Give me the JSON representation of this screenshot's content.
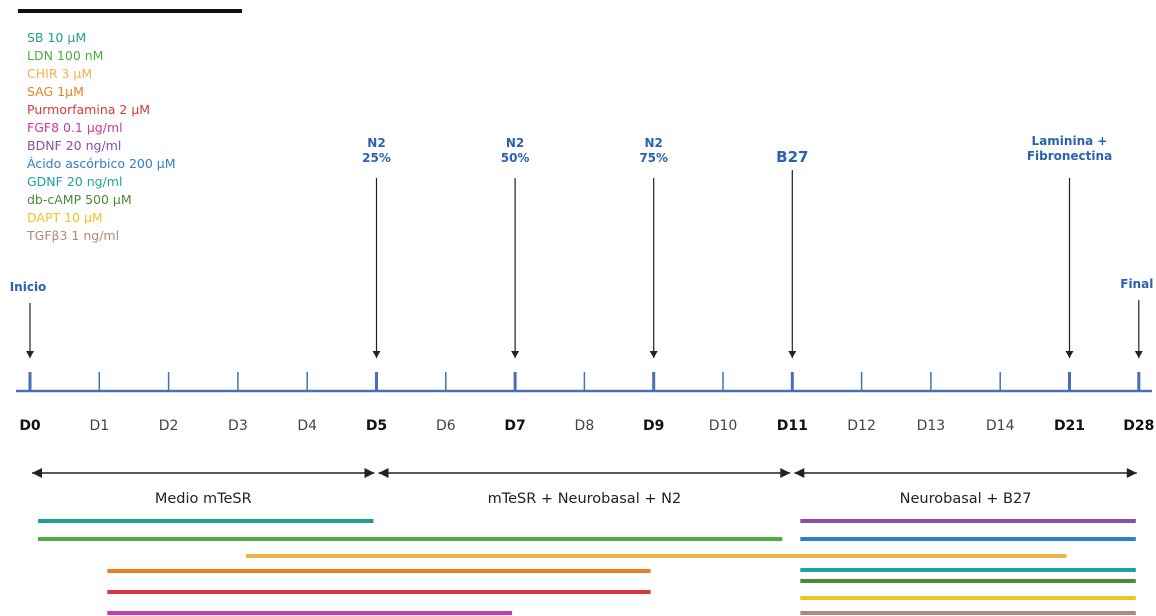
{
  "legend": [
    {
      "label": "SB 10 µM",
      "color": "#1f9e94"
    },
    {
      "label": "LDN 100 nM",
      "color": "#4caf3e"
    },
    {
      "label": "CHIR 3 µM",
      "color": "#f2b24a"
    },
    {
      "label": "SAG 1µM",
      "color": "#ea7f27"
    },
    {
      "label": "Purmorfamina 2 µM",
      "color": "#d9383a"
    },
    {
      "label": "FGF8 0.1 µg/ml",
      "color": "#c83aa9"
    },
    {
      "label": "BDNF 20 ng/ml",
      "color": "#8a4ea8"
    },
    {
      "label": "Ácido ascórbico 200 µM",
      "color": "#2e7fc9"
    },
    {
      "label": "GDNF 20 ng/ml",
      "color": "#19a3a3"
    },
    {
      "label": "db-cAMP 500 µM",
      "color": "#4b8a3a"
    },
    {
      "label": "DAPT 10 µM",
      "color": "#ebc626"
    },
    {
      "label": "TGFβ3 1 ng/ml",
      "color": "#b08a78"
    }
  ],
  "timeline": {
    "days": [
      {
        "label": "D0",
        "bold": true
      },
      {
        "label": "D1",
        "bold": false
      },
      {
        "label": "D2",
        "bold": false
      },
      {
        "label": "D3",
        "bold": false
      },
      {
        "label": "D4",
        "bold": false
      },
      {
        "label": "D5",
        "bold": true
      },
      {
        "label": "D6",
        "bold": false
      },
      {
        "label": "D7",
        "bold": true
      },
      {
        "label": "D8",
        "bold": false
      },
      {
        "label": "D9",
        "bold": true
      },
      {
        "label": "D10",
        "bold": false
      },
      {
        "label": "D11",
        "bold": true
      },
      {
        "label": "D12",
        "bold": false
      },
      {
        "label": "D13",
        "bold": false
      },
      {
        "label": "D14",
        "bold": false
      },
      {
        "label": "D21",
        "bold": true
      },
      {
        "label": "D28",
        "bold": true
      }
    ],
    "line_color": "#4a6fb5"
  },
  "annotations": [
    {
      "day": "D0",
      "lines": [
        "Inicio"
      ]
    },
    {
      "day": "D5",
      "lines": [
        "N2",
        "25%"
      ]
    },
    {
      "day": "D7",
      "lines": [
        "N2",
        "50%"
      ]
    },
    {
      "day": "D9",
      "lines": [
        "N2",
        "75%"
      ]
    },
    {
      "day": "D11",
      "lines": [
        "B27"
      ],
      "large": true
    },
    {
      "day": "D21",
      "lines": [
        "Laminina +",
        "Fibronectina"
      ]
    },
    {
      "day": "D28",
      "lines": [
        "Final"
      ]
    }
  ],
  "phases": [
    {
      "label": "Medio mTeSR",
      "from": "D0",
      "to": "D5"
    },
    {
      "label": "mTeSR + Neurobasal + N2",
      "from": "D5",
      "to": "D11"
    },
    {
      "label": "Neurobasal + B27",
      "from": "D11",
      "to": "D28"
    }
  ],
  "treatments": [
    {
      "name": "SB 10 µM",
      "from": "D0",
      "to": "D5"
    },
    {
      "name": "LDN 100 nM",
      "from": "D0",
      "to": "D11"
    },
    {
      "name": "CHIR 3 µM",
      "from": "D3",
      "to": "D21"
    },
    {
      "name": "SAG 1µM",
      "from": "D1",
      "to": "D9"
    },
    {
      "name": "Purmorfamina 2 µM",
      "from": "D1",
      "to": "D9"
    },
    {
      "name": "FGF8 0.1 µg/ml",
      "from": "D1",
      "to": "D7"
    },
    {
      "name": "BDNF 20 ng/ml",
      "from": "D11",
      "to": "D28"
    },
    {
      "name": "Ácido ascórbico 200 µM",
      "from": "D11",
      "to": "D28"
    },
    {
      "name": "GDNF 20 ng/ml",
      "from": "D11",
      "to": "D28"
    },
    {
      "name": "db-cAMP 500 µM",
      "from": "D11",
      "to": "D28"
    },
    {
      "name": "DAPT 10 µM",
      "from": "D11",
      "to": "D28"
    },
    {
      "name": "TGFβ3 1 ng/ml",
      "from": "D11",
      "to": "D28"
    }
  ]
}
